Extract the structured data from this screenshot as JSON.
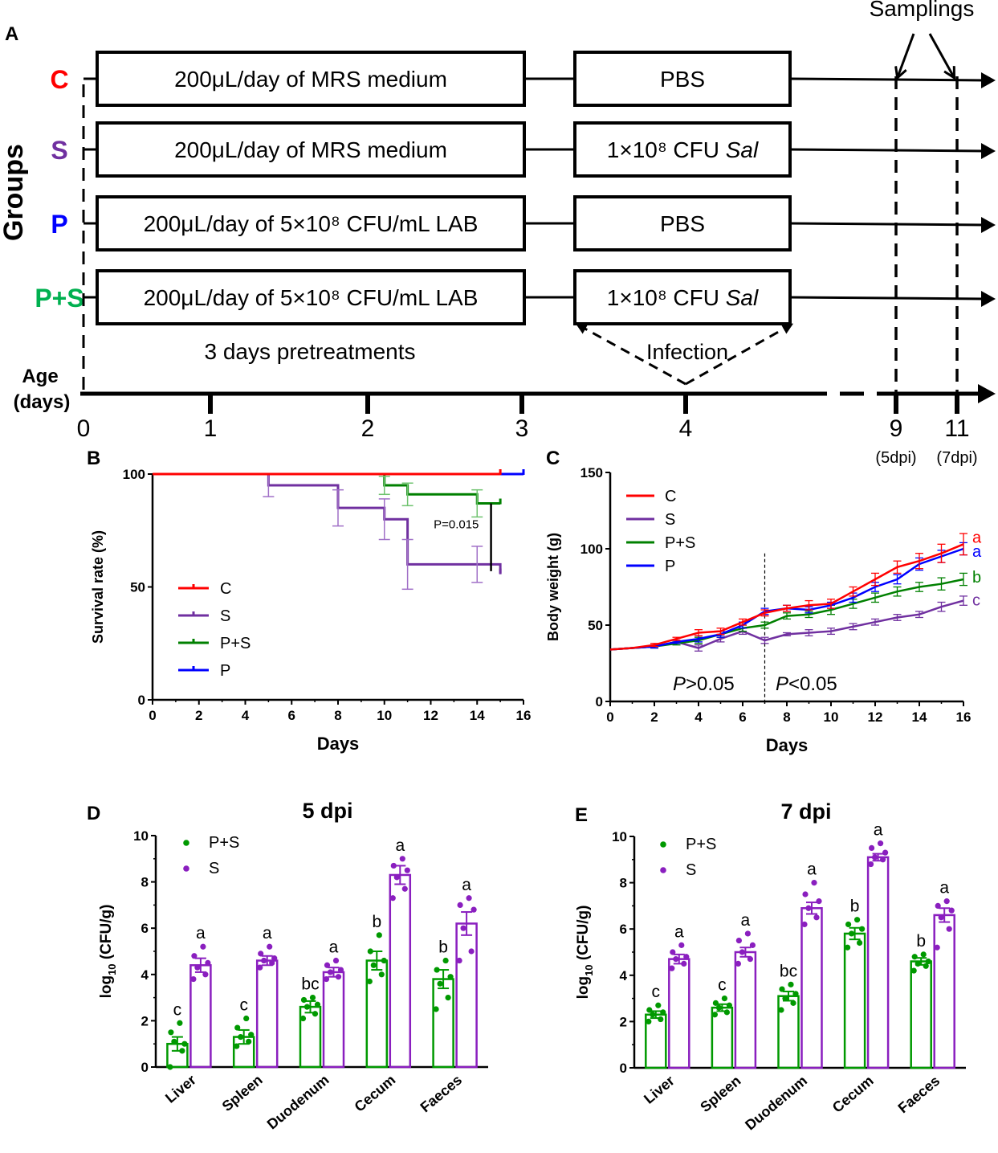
{
  "panel_a": {
    "label": "A",
    "groups_title": "Groups",
    "sampling_label": "Samplings",
    "pretreat_label": "3 days pretreatments",
    "infection_label": "Infection",
    "age_label_line1": "Age",
    "age_label_line2": "(days)",
    "groups": [
      {
        "name": "C",
        "color": "#ff0000",
        "pretreatment": "200μL/day of MRS medium",
        "challenge_main": "PBS",
        "challenge_italic": ""
      },
      {
        "name": "S",
        "color": "#7030a0",
        "pretreatment": "200μL/day of MRS medium",
        "challenge_main": "1×10⁸ CFU ",
        "challenge_italic": "Sal"
      },
      {
        "name": "P",
        "color": "#0000ff",
        "pretreatment": "200μL/day of 5×10⁸ CFU/mL LAB",
        "challenge_main": "PBS",
        "challenge_italic": ""
      },
      {
        "name": "P+S",
        "color": "#00b050",
        "pretreatment": "200μL/day of 5×10⁸ CFU/mL LAB",
        "challenge_main": "1×10⁸ CFU ",
        "challenge_italic": "Sal"
      }
    ],
    "timeline_ticks": [
      "0",
      "1",
      "2",
      "3",
      "4",
      "9",
      "11"
    ],
    "timeline_sub": [
      "(5dpi)",
      "(7dpi)"
    ]
  },
  "chart_data": [
    {
      "id": "B",
      "type": "line",
      "panel_label": "B",
      "title": "",
      "xlabel": "Days",
      "ylabel": "Survival rate (%)",
      "xlim": [
        0,
        16
      ],
      "ylim": [
        0,
        100
      ],
      "xticks": [
        0,
        2,
        4,
        6,
        8,
        10,
        12,
        14,
        16
      ],
      "yticks": [
        0,
        50,
        100
      ],
      "annotation": "P=0.015",
      "series": [
        {
          "name": "C",
          "color": "#ff0000",
          "x": [
            0,
            15
          ],
          "y": [
            100,
            100
          ],
          "err": []
        },
        {
          "name": "S",
          "color": "#7030a0",
          "x": [
            0,
            5,
            8,
            10,
            11,
            14,
            15
          ],
          "y": [
            100,
            95,
            85,
            80,
            60,
            60,
            56
          ],
          "err": [
            0,
            5,
            8,
            9,
            11,
            8,
            0
          ]
        },
        {
          "name": "P+S",
          "color": "#008000",
          "x": [
            0,
            10,
            11,
            14,
            15
          ],
          "y": [
            100,
            95,
            91,
            87,
            87
          ],
          "err": [
            0,
            4,
            5,
            6,
            0
          ]
        },
        {
          "name": "P",
          "color": "#0000ff",
          "x": [
            15,
            16
          ],
          "y": [
            100,
            100
          ],
          "err": []
        }
      ]
    },
    {
      "id": "C",
      "type": "line",
      "panel_label": "C",
      "title": "",
      "xlabel": "Days",
      "ylabel": "Body weight  (g)",
      "xlim": [
        0,
        16
      ],
      "ylim": [
        0,
        150
      ],
      "xticks": [
        0,
        2,
        4,
        6,
        8,
        10,
        12,
        14,
        16
      ],
      "yticks": [
        0,
        50,
        100,
        150
      ],
      "divider_x": 7,
      "annot_left": ">0.05",
      "annot_right": "<0.05",
      "annot_p": "P",
      "series": [
        {
          "name": "C",
          "color": "#ff0000",
          "letter": "a",
          "x": [
            0,
            1,
            2,
            3,
            4,
            5,
            6,
            7,
            8,
            9,
            10,
            11,
            12,
            13,
            14,
            15,
            16
          ],
          "y": [
            34,
            35,
            37,
            41,
            45,
            46,
            52,
            58,
            61,
            63,
            64,
            72,
            80,
            88,
            92,
            97,
            103
          ],
          "err": [
            0,
            0,
            1,
            1,
            2,
            2,
            2,
            2,
            2,
            3,
            3,
            3,
            4,
            4,
            5,
            6,
            7
          ]
        },
        {
          "name": "S",
          "color": "#7030a0",
          "letter": "c",
          "x": [
            0,
            1,
            2,
            3,
            4,
            5,
            6,
            7,
            8,
            9,
            10,
            11,
            12,
            13,
            14,
            15,
            16
          ],
          "y": [
            34,
            35,
            36,
            39,
            35,
            41,
            46,
            40,
            44,
            45,
            46,
            49,
            52,
            55,
            57,
            62,
            66
          ],
          "err": [
            0,
            0,
            1,
            1,
            2,
            2,
            2,
            2,
            1,
            2,
            2,
            2,
            2,
            2,
            2,
            3,
            3
          ]
        },
        {
          "name": "P+S",
          "color": "#008000",
          "letter": "b",
          "x": [
            0,
            1,
            2,
            3,
            4,
            5,
            6,
            7,
            8,
            9,
            10,
            11,
            12,
            13,
            14,
            15,
            16
          ],
          "y": [
            34,
            35,
            36,
            38,
            40,
            44,
            48,
            50,
            56,
            57,
            60,
            64,
            68,
            72,
            75,
            77,
            80
          ],
          "err": [
            0,
            0,
            1,
            1,
            2,
            2,
            2,
            2,
            2,
            2,
            3,
            3,
            3,
            3,
            3,
            4,
            4
          ]
        },
        {
          "name": "P",
          "color": "#0000ff",
          "letter": "a",
          "x": [
            0,
            1,
            2,
            3,
            4,
            5,
            6,
            7,
            8,
            9,
            10,
            11,
            12,
            13,
            14,
            15,
            16
          ],
          "y": [
            34,
            35,
            36,
            39,
            41,
            44,
            50,
            59,
            61,
            60,
            63,
            68,
            75,
            80,
            90,
            95,
            100
          ],
          "err": [
            0,
            0,
            1,
            1,
            2,
            2,
            2,
            2,
            2,
            2,
            2,
            3,
            3,
            3,
            4,
            4,
            4
          ]
        }
      ]
    },
    {
      "id": "D",
      "type": "bar",
      "panel_label": "D",
      "title": "5 dpi",
      "xlabel": "",
      "ylabel_main": "log",
      "ylabel_sub": "10",
      "ylabel_rest": " (CFU/g)",
      "ylim": [
        0,
        10
      ],
      "yticks": [
        0,
        2,
        4,
        6,
        8,
        10
      ],
      "categories": [
        "Liver",
        "Spleen",
        "Duodenum",
        "Cecum",
        "Faeces"
      ],
      "series": [
        {
          "name": "P+S",
          "color": "#009900",
          "values": [
            1.0,
            1.3,
            2.6,
            4.6,
            3.8
          ],
          "err": [
            0.3,
            0.3,
            0.25,
            0.4,
            0.4
          ],
          "letters": [
            "c",
            "c",
            "bc",
            "b",
            "b"
          ],
          "points": [
            [
              0.0,
              0.7,
              1.1,
              1.0,
              1.5,
              1.9
            ],
            [
              0.9,
              1.1,
              1.3,
              1.4,
              1.7,
              2.1
            ],
            [
              2.1,
              2.3,
              2.6,
              2.7,
              2.9,
              3.0
            ],
            [
              3.7,
              4.0,
              4.4,
              4.6,
              5.0,
              5.7
            ],
            [
              2.5,
              3.0,
              3.6,
              3.9,
              4.2,
              4.6
            ]
          ]
        },
        {
          "name": "S",
          "color": "#8a1fbf",
          "values": [
            4.4,
            4.6,
            4.1,
            8.3,
            6.2
          ],
          "err": [
            0.3,
            0.2,
            0.2,
            0.4,
            0.5
          ],
          "letters": [
            "a",
            "a",
            "a",
            "a",
            "a"
          ],
          "points": [
            [
              3.8,
              4.0,
              4.3,
              4.5,
              4.8,
              5.2
            ],
            [
              4.3,
              4.5,
              4.6,
              4.7,
              4.9,
              5.2
            ],
            [
              3.8,
              3.9,
              4.1,
              4.2,
              4.4,
              4.6
            ],
            [
              7.3,
              7.7,
              8.2,
              8.5,
              8.7,
              9.0
            ],
            [
              4.6,
              5.0,
              6.0,
              6.8,
              7.0,
              7.3
            ]
          ]
        }
      ]
    },
    {
      "id": "E",
      "type": "bar",
      "panel_label": "E",
      "title": "7 dpi",
      "xlabel": "",
      "ylabel_main": "log",
      "ylabel_sub": "10",
      "ylabel_rest": " (CFU/g)",
      "ylim": [
        0,
        10
      ],
      "yticks": [
        0,
        2,
        4,
        6,
        8,
        10
      ],
      "categories": [
        "Liver",
        "Spleen",
        "Duodenum",
        "Cecum",
        "Faeces"
      ],
      "series": [
        {
          "name": "P+S",
          "color": "#009900",
          "values": [
            2.3,
            2.6,
            3.1,
            5.8,
            4.6
          ],
          "err": [
            0.15,
            0.15,
            0.2,
            0.25,
            0.15
          ],
          "letters": [
            "c",
            "c",
            "bc",
            "b",
            "b"
          ],
          "points": [
            [
              2.0,
              2.1,
              2.3,
              2.4,
              2.5,
              2.7
            ],
            [
              2.3,
              2.4,
              2.6,
              2.7,
              2.8,
              3.0
            ],
            [
              2.5,
              2.8,
              3.0,
              3.2,
              3.4,
              3.6
            ],
            [
              5.2,
              5.4,
              5.8,
              6.0,
              6.2,
              6.4
            ],
            [
              4.2,
              4.4,
              4.5,
              4.6,
              4.8,
              4.9
            ]
          ]
        },
        {
          "name": "S",
          "color": "#8a1fbf",
          "values": [
            4.7,
            5.0,
            6.9,
            9.1,
            6.6
          ],
          "err": [
            0.2,
            0.2,
            0.25,
            0.15,
            0.3
          ],
          "letters": [
            "a",
            "a",
            "a",
            "a",
            "a"
          ],
          "points": [
            [
              4.3,
              4.5,
              4.7,
              4.8,
              5.0,
              5.3
            ],
            [
              4.5,
              4.7,
              5.0,
              5.3,
              5.5,
              5.8
            ],
            [
              6.2,
              6.5,
              6.9,
              7.2,
              7.5,
              8.0
            ],
            [
              8.8,
              9.0,
              9.1,
              9.3,
              9.5,
              9.7
            ],
            [
              5.2,
              6.0,
              6.5,
              6.8,
              7.0,
              7.2
            ]
          ]
        }
      ]
    }
  ]
}
